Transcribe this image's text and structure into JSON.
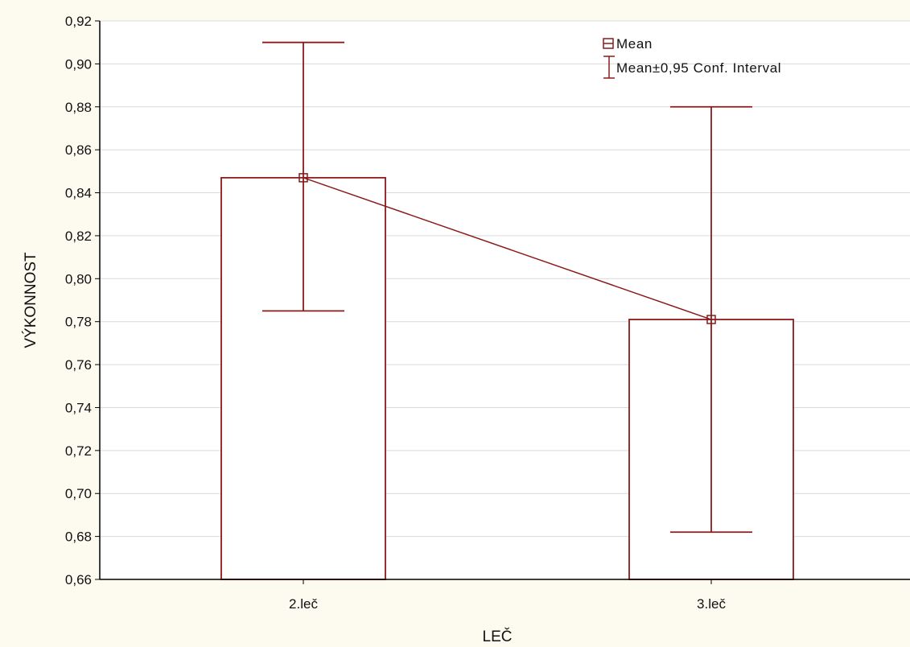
{
  "colors": {
    "background": "#fdfaf0",
    "plot_background": "#ffffff",
    "series": "#8b1a1a",
    "grid": "#d9d9d9",
    "axis": "#000000"
  },
  "chart_data": {
    "type": "bar",
    "title": "",
    "xlabel": "LEČ",
    "ylabel": "VÝKONNOST",
    "categories": [
      "2.leč",
      "3.leč"
    ],
    "series": [
      {
        "name": "Mean",
        "values": [
          0.847,
          0.781
        ],
        "ci_lower": [
          0.785,
          0.682
        ],
        "ci_upper": [
          0.91,
          0.88
        ]
      }
    ],
    "ylim": [
      0.66,
      0.92
    ],
    "yticks": [
      "0,66",
      "0,68",
      "0,70",
      "0,72",
      "0,74",
      "0,76",
      "0,78",
      "0,80",
      "0,82",
      "0,84",
      "0,86",
      "0,88",
      "0,90",
      "0,92"
    ],
    "ytick_values": [
      0.66,
      0.68,
      0.7,
      0.72,
      0.74,
      0.76,
      0.78,
      0.8,
      0.82,
      0.84,
      0.86,
      0.88,
      0.9,
      0.92
    ],
    "grid": true,
    "legend": {
      "placement": "top-right",
      "entries": [
        "Mean",
        "Mean±0,95 Conf. Interval"
      ]
    }
  }
}
